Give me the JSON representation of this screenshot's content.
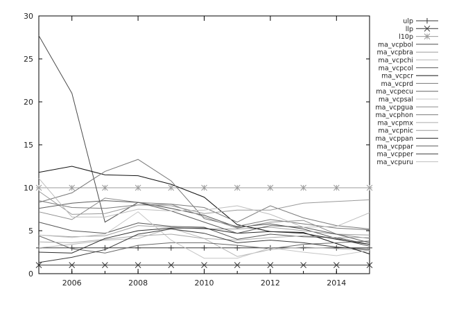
{
  "chart_data": {
    "type": "line",
    "title": "",
    "xlabel": "",
    "ylabel": "",
    "xlim": [
      2005,
      2015
    ],
    "ylim": [
      0,
      30
    ],
    "x_ticks": [
      2006,
      2008,
      2010,
      2012,
      2014
    ],
    "y_ticks": [
      0,
      5,
      10,
      15,
      20,
      25,
      30
    ],
    "grid": false,
    "legend_position": "right",
    "x": [
      2005,
      2006,
      2007,
      2008,
      2009,
      2010,
      2011,
      2012,
      2013,
      2014,
      2015
    ],
    "series": [
      {
        "name": "ulp",
        "marker": "plus",
        "color": "#333333",
        "values": [
          3,
          3,
          3,
          3,
          3,
          3,
          3,
          3,
          3,
          3,
          3
        ]
      },
      {
        "name": "llp",
        "marker": "x",
        "color": "#333333",
        "values": [
          1,
          1,
          1,
          1,
          1,
          1,
          1,
          1,
          1,
          1,
          1
        ]
      },
      {
        "name": "l10p",
        "marker": "star",
        "color": "#9a9a9a",
        "values": [
          10,
          10,
          10,
          10,
          10,
          10,
          10,
          10,
          10,
          10,
          10
        ]
      },
      {
        "name": "ma_vcpbol",
        "color": "#4a4a4a",
        "values": [
          27.7,
          21.0,
          6.0,
          8.3,
          7.6,
          6.8,
          5.4,
          5.8,
          5.2,
          4.1,
          3.2
        ]
      },
      {
        "name": "ma_vcpbra",
        "color": "#9e9e9e",
        "values": [
          4.5,
          4.3,
          4.4,
          5.6,
          5.4,
          5.2,
          5.2,
          5.4,
          5.0,
          4.6,
          4.5
        ]
      },
      {
        "name": "ma_vcpchi",
        "color": "#b8b8b8",
        "values": [
          3.0,
          3.4,
          3.9,
          4.1,
          5.3,
          4.1,
          2.0,
          2.8,
          3.1,
          2.9,
          2.7
        ]
      },
      {
        "name": "ma_vcpcol",
        "color": "#555555",
        "values": [
          6.0,
          5.0,
          4.7,
          5.9,
          5.5,
          5.4,
          4.0,
          4.6,
          4.3,
          4.2,
          3.4
        ]
      },
      {
        "name": "ma_vcpcr",
        "color": "#111111",
        "values": [
          11.8,
          12.5,
          11.5,
          11.4,
          10.4,
          8.9,
          5.7,
          4.9,
          4.8,
          3.5,
          2.3
        ]
      },
      {
        "name": "ma_vcprd",
        "color": "#777777",
        "values": [
          8.3,
          9.4,
          11.9,
          13.3,
          10.8,
          6.4,
          5.5,
          6.3,
          5.8,
          5.3,
          5.1
        ]
      },
      {
        "name": "ma_vcpecu",
        "color": "#666666",
        "values": [
          4.4,
          2.9,
          2.4,
          3.3,
          3.6,
          3.6,
          3.3,
          2.9,
          3.4,
          3.6,
          3.8
        ]
      },
      {
        "name": "ma_vcpsal",
        "color": "#c6c6c6",
        "values": [
          4.5,
          4.2,
          4.6,
          7.2,
          3.9,
          1.8,
          1.8,
          3.0,
          2.5,
          2.1,
          2.7
        ]
      },
      {
        "name": "ma_vcpgua",
        "color": "#8c8c8c",
        "values": [
          7.2,
          6.3,
          8.8,
          8.3,
          8.1,
          6.6,
          5.3,
          6.0,
          6.2,
          4.6,
          4.1
        ]
      },
      {
        "name": "ma_vcphon",
        "color": "#7a7a7a",
        "values": [
          8.5,
          7.7,
          7.6,
          8.0,
          8.1,
          7.7,
          6.0,
          7.9,
          6.5,
          5.6,
          5.2
        ]
      },
      {
        "name": "ma_vcpmx",
        "color": "#aaaaaa",
        "values": [
          3.7,
          3.6,
          4.0,
          4.4,
          4.6,
          4.1,
          3.9,
          4.2,
          4.4,
          4.2,
          4.2
        ]
      },
      {
        "name": "ma_vcpnic",
        "color": "#999999",
        "values": [
          9.6,
          6.9,
          7.0,
          8.0,
          7.9,
          7.0,
          7.4,
          7.4,
          8.2,
          8.4,
          8.6
        ]
      },
      {
        "name": "ma_vcppan",
        "color": "#2a2a2a",
        "values": [
          2.5,
          2.4,
          4.1,
          5.0,
          5.3,
          5.3,
          4.7,
          4.9,
          4.7,
          4.0,
          3.4
        ]
      },
      {
        "name": "ma_vcppar",
        "color": "#5c5c5c",
        "values": [
          7.6,
          8.2,
          8.5,
          8.3,
          7.3,
          6.0,
          4.7,
          5.6,
          5.4,
          4.6,
          3.6
        ]
      },
      {
        "name": "ma_vcpper",
        "color": "#3a3a3a",
        "values": [
          1.3,
          1.9,
          2.8,
          4.6,
          5.2,
          4.7,
          3.6,
          3.9,
          3.6,
          3.1,
          2.8
        ]
      },
      {
        "name": "ma_vcpuru",
        "color": "#bdbdbd",
        "values": [
          11.1,
          6.6,
          6.6,
          7.5,
          7.3,
          7.4,
          7.9,
          6.9,
          5.4,
          5.5,
          7.1
        ]
      }
    ]
  }
}
